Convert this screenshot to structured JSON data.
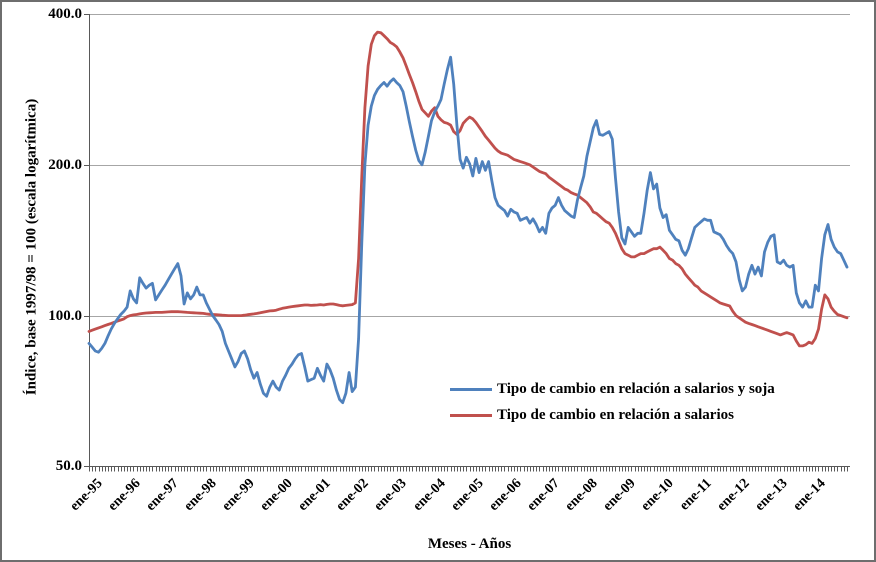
{
  "chart_data": {
    "type": "line",
    "scale": "logarithmic",
    "ylim": [
      50,
      400
    ],
    "grid": "horizontal-on",
    "legend_position": "inside-lower-right",
    "x_axis": {
      "label": "Meses - Años",
      "tick_labels": [
        "ene-95",
        "ene-96",
        "ene-97",
        "ene-98",
        "ene-99",
        "ene-00",
        "ene-01",
        "ene-02",
        "ene-03",
        "ene-04",
        "ene-05",
        "ene-06",
        "ene-07",
        "ene-08",
        "ene-09",
        "ene-10",
        "ene-11",
        "ene-12",
        "ene-13",
        "ene-14"
      ],
      "minor_ticks": "monthly"
    },
    "y_axis": {
      "label": "Índice, base 1997/98 = 100  (escala logarítmica)",
      "tick_labels": [
        "400.0",
        "200.0",
        "100.0",
        "50.0"
      ],
      "tick_values": [
        400,
        200,
        100,
        50
      ]
    },
    "x_start": "ene-95",
    "x_end": "dic-14",
    "months_per_point": 1,
    "series": [
      {
        "name": "Tipo de cambio en relación a salarios y soja",
        "color": "#4F81BD",
        "values": [
          88,
          86.5,
          85,
          84.5,
          86,
          88,
          91,
          94,
          96.5,
          98.5,
          100.5,
          102,
          104,
          112,
          108,
          106,
          119,
          116,
          113.5,
          115,
          116,
          107.5,
          110,
          112.5,
          115,
          118,
          121,
          124,
          127,
          120,
          105.5,
          111,
          108,
          110,
          114,
          110,
          110,
          106,
          103,
          100,
          98,
          96,
          93,
          88,
          85,
          82,
          79,
          81,
          84,
          85,
          82,
          78,
          75,
          77,
          73,
          70,
          69,
          72,
          74,
          72,
          71,
          74,
          76,
          78.5,
          80,
          82,
          83.5,
          84,
          79,
          74,
          74.5,
          75,
          78.5,
          76,
          74,
          80,
          78,
          75,
          71,
          68,
          67,
          70,
          77,
          70.5,
          72,
          90,
          140,
          200,
          240,
          262,
          275,
          283,
          288,
          292,
          287,
          293,
          297,
          292,
          288,
          280,
          262,
          244,
          228,
          214,
          204,
          200,
          212,
          228,
          245,
          255,
          262,
          270,
          290,
          310,
          328,
          290,
          240,
          205,
          197,
          207,
          201,
          190,
          206,
          193,
          203,
          195,
          203,
          186,
          172,
          166,
          164,
          162,
          158,
          163,
          161,
          160,
          155,
          156,
          157,
          153,
          156,
          152,
          147,
          150,
          146,
          160,
          164,
          166,
          172,
          166,
          162,
          160,
          158,
          157,
          170,
          180,
          190,
          208,
          222,
          237,
          245,
          230,
          229,
          231,
          233,
          225,
          188,
          161,
          143,
          139,
          150,
          147,
          144,
          146,
          146,
          160,
          178,
          193,
          179,
          183,
          164,
          157,
          159,
          148,
          145,
          142,
          141,
          135,
          132,
          136,
          143,
          150,
          152,
          154,
          156,
          155,
          155,
          147,
          146,
          145,
          142,
          138,
          135,
          133,
          128,
          118,
          112,
          114,
          121,
          126,
          121,
          125,
          120,
          134,
          140,
          144,
          145,
          128,
          127,
          129,
          126,
          125,
          126,
          111,
          106,
          104,
          107,
          104,
          104,
          115,
          112,
          130,
          145,
          152,
          142,
          137,
          134,
          133,
          129,
          125
        ]
      },
      {
        "name": "Tipo de cambio en relación a salarios",
        "color": "#C0504D",
        "values": [
          93,
          93.5,
          94,
          94.5,
          95,
          95.5,
          96,
          96.5,
          97,
          97.5,
          98,
          98.5,
          99.5,
          100,
          100.3,
          100.5,
          100.8,
          101,
          101.2,
          101.3,
          101.4,
          101.5,
          101.5,
          101.5,
          101.6,
          101.7,
          101.8,
          101.8,
          101.8,
          101.7,
          101.6,
          101.5,
          101.4,
          101.3,
          101.2,
          101.1,
          101,
          100.8,
          100.6,
          100.5,
          100.4,
          100.3,
          100.2,
          100.1,
          100,
          100,
          100,
          100,
          100,
          100.2,
          100.4,
          100.6,
          100.8,
          101,
          101.3,
          101.6,
          101.9,
          102.2,
          102.3,
          102.5,
          103,
          103.4,
          103.7,
          104,
          104.2,
          104.4,
          104.6,
          104.8,
          105,
          105,
          104.8,
          104.9,
          105,
          105.2,
          105,
          105.3,
          105.5,
          105.5,
          105.2,
          104.8,
          104.6,
          104.8,
          105,
          105.2,
          106,
          130,
          190,
          260,
          315,
          348,
          362,
          368,
          367,
          362,
          357,
          351,
          348,
          344,
          336,
          327,
          315,
          303,
          292,
          280,
          268,
          258,
          254,
          250,
          256,
          260,
          250,
          246,
          243,
          242,
          240,
          233,
          230,
          234,
          242,
          246,
          249,
          247,
          243,
          238,
          233,
          228,
          224,
          220,
          216,
          213,
          211,
          210,
          209,
          207,
          205,
          204,
          203,
          202,
          201,
          200,
          198,
          196,
          194,
          193,
          192,
          189,
          187,
          185,
          183,
          181,
          179,
          178,
          176,
          175,
          174,
          172,
          170,
          168,
          165,
          161,
          160,
          158,
          156,
          154,
          153,
          150,
          146,
          141,
          136,
          133,
          132,
          131,
          131,
          132,
          133,
          133,
          134,
          135,
          136,
          136,
          137,
          135,
          133,
          130,
          129,
          127,
          126,
          124,
          121,
          119,
          117,
          115,
          114,
          112,
          111,
          110,
          109,
          108,
          107,
          106,
          105.5,
          105,
          104.5,
          102,
          100,
          99,
          98,
          97,
          96.5,
          96,
          95.5,
          95,
          94.5,
          94,
          93.5,
          93,
          92.5,
          92,
          91.5,
          92,
          92.5,
          92,
          91.5,
          89,
          87,
          87,
          87.5,
          88.5,
          88,
          90,
          94,
          103,
          110,
          108,
          104,
          102,
          100.5,
          100,
          99.5,
          99
        ]
      }
    ],
    "style_colors": {
      "gridline": "#A6A6A6",
      "axis": "#595959",
      "text": "#000000"
    }
  }
}
